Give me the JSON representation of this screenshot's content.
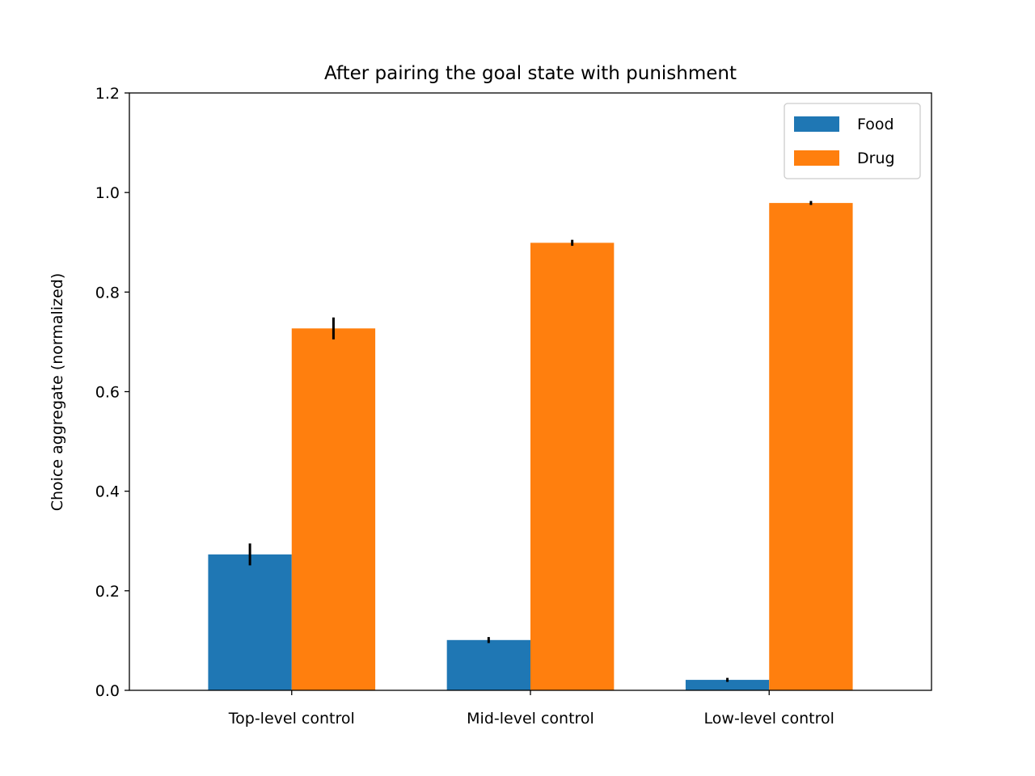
{
  "chart_data": {
    "type": "bar",
    "title": "After pairing the goal state with punishment",
    "xlabel": "",
    "ylabel": "Choice aggregate (normalized)",
    "categories": [
      "Top-level control",
      "Mid-level control",
      "Low-level control"
    ],
    "series": [
      {
        "name": "Food",
        "color": "#1f77b4",
        "values": [
          0.273,
          0.101,
          0.021
        ],
        "errors": [
          0.022,
          0.006,
          0.004
        ]
      },
      {
        "name": "Drug",
        "color": "#ff7f0e",
        "values": [
          0.727,
          0.899,
          0.979
        ],
        "errors": [
          0.022,
          0.006,
          0.004
        ]
      }
    ],
    "ylim": [
      0,
      1.2
    ],
    "yticks": [
      "0.0",
      "0.2",
      "0.4",
      "0.6",
      "0.8",
      "1.0",
      "1.2"
    ],
    "grid": false,
    "legend": "top-right",
    "error_bar_color": "#000000"
  }
}
